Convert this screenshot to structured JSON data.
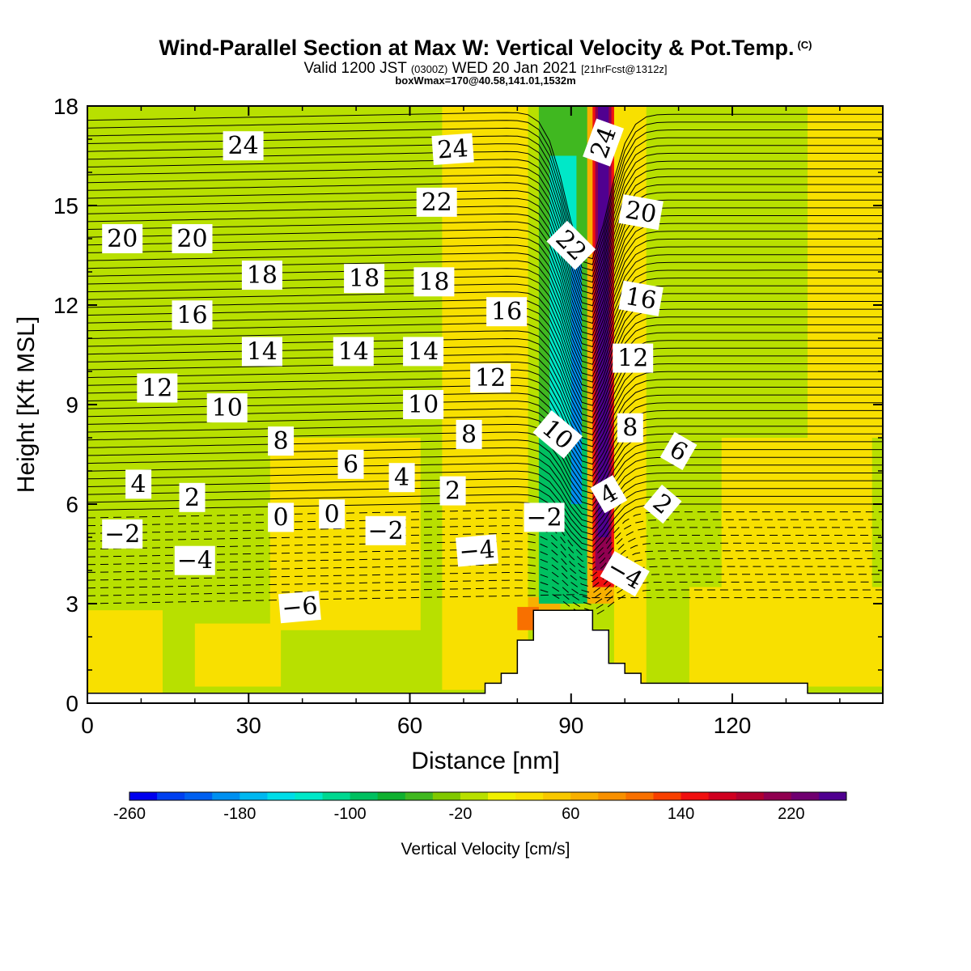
{
  "title": {
    "main": "Wind-Parallel Section at Max W: Vertical Velocity & Pot.Temp.",
    "mark": "(C)",
    "valid_prefix": "Valid 1200 JST",
    "valid_zulu": "(0300Z)",
    "valid_date": "WED 20 Jan 2021",
    "valid_fcst": "[21hrFcst@1312z]",
    "box": "boxWmax=170@40.58,141.01,1532m"
  },
  "chart_data": {
    "type": "heatmap",
    "xlabel": "Distance [nm]",
    "ylabel": "Height [Kft MSL]",
    "xlim": [
      0,
      148
    ],
    "ylim": [
      0,
      18
    ],
    "xticks": [
      0,
      30,
      60,
      90,
      120
    ],
    "yticks": [
      0,
      3,
      6,
      9,
      12,
      15,
      18
    ],
    "colorbar": {
      "title": "Vertical Velocity [cm/s]",
      "ticks": [
        -260,
        -180,
        -100,
        -20,
        60,
        140,
        220
      ],
      "colors": [
        "#0000ee",
        "#0040f0",
        "#0060f0",
        "#0090f0",
        "#00b8f0",
        "#00dde8",
        "#00e8c8",
        "#00d890",
        "#00c060",
        "#10b030",
        "#40b820",
        "#80c800",
        "#b8e000",
        "#f0f000",
        "#f8e000",
        "#f8c800",
        "#f8b000",
        "#f89000",
        "#f87000",
        "#f84000",
        "#f01010",
        "#d00020",
        "#b00030",
        "#900050",
        "#700070",
        "#500090"
      ],
      "min": -260,
      "max": 260
    },
    "velocity_regions": [
      {
        "x": [
          0,
          148
        ],
        "y": [
          0,
          18
        ],
        "w": -20
      },
      {
        "x": [
          0,
          14
        ],
        "y": [
          0.3,
          2.8
        ],
        "w": 20
      },
      {
        "x": [
          20,
          36
        ],
        "y": [
          0.5,
          2.4
        ],
        "w": 20
      },
      {
        "x": [
          34,
          62
        ],
        "y": [
          2.2,
          8.0
        ],
        "w": 20
      },
      {
        "x": [
          66,
          82
        ],
        "y": [
          0.4,
          18
        ],
        "w": 20
      },
      {
        "x": [
          98,
          104
        ],
        "y": [
          0.5,
          18
        ],
        "w": 20
      },
      {
        "x": [
          112,
          148
        ],
        "y": [
          0.5,
          3.5
        ],
        "w": 20
      },
      {
        "x": [
          118,
          146
        ],
        "y": [
          3.5,
          8.0
        ],
        "w": 20
      },
      {
        "x": [
          134,
          148
        ],
        "y": [
          8.0,
          18
        ],
        "w": 20
      },
      {
        "x": [
          82,
          88
        ],
        "y": [
          2.4,
          3.2
        ],
        "w": 60
      },
      {
        "x": [
          80,
          84
        ],
        "y": [
          2.2,
          2.9
        ],
        "w": 100
      },
      {
        "x": [
          84,
          97
        ],
        "y": [
          8.0,
          18
        ],
        "w": -60
      },
      {
        "x": [
          84,
          94
        ],
        "y": [
          3.0,
          8.0
        ],
        "w": -100
      },
      {
        "x": [
          86,
          91
        ],
        "y": [
          8.0,
          16.5
        ],
        "w": -140
      },
      {
        "x": [
          90,
          92
        ],
        "y": [
          6.0,
          13.5
        ],
        "w": -200
      },
      {
        "x": [
          93,
          98
        ],
        "y": [
          3.0,
          18
        ],
        "w": 60
      },
      {
        "x": [
          94,
          98
        ],
        "y": [
          3.5,
          18
        ],
        "w": 140
      },
      {
        "x": [
          94.5,
          97.5
        ],
        "y": [
          4.0,
          18
        ],
        "w": 200
      },
      {
        "x": [
          95,
          97
        ],
        "y": [
          5.0,
          18
        ],
        "w": 250
      }
    ],
    "terrain": {
      "x": [
        0,
        74,
        74,
        77,
        77,
        80,
        80,
        83,
        83,
        86,
        86,
        94,
        94,
        97,
        97,
        100,
        100,
        103,
        103,
        134,
        134,
        148
      ],
      "y": [
        0.3,
        0.3,
        0.6,
        0.6,
        0.9,
        0.9,
        1.9,
        1.9,
        2.8,
        2.8,
        2.8,
        2.8,
        2.2,
        2.2,
        1.2,
        1.2,
        0.9,
        0.9,
        0.6,
        0.6,
        0.3,
        0.3
      ]
    },
    "theta_contours": {
      "levels": [
        -6,
        -4,
        -2,
        0,
        2,
        4,
        6,
        8,
        10,
        12,
        14,
        16,
        18,
        20,
        22,
        24
      ],
      "labels": [
        {
          "text": "24",
          "x": 29,
          "y": 16.8,
          "rot": 0
        },
        {
          "text": "24",
          "x": 68,
          "y": 16.7,
          "rot": -4
        },
        {
          "text": "24",
          "x": 96,
          "y": 16.9,
          "rot": -70
        },
        {
          "text": "22",
          "x": 65,
          "y": 15.1,
          "rot": 0
        },
        {
          "text": "22",
          "x": 90,
          "y": 13.8,
          "rot": 45
        },
        {
          "text": "20",
          "x": 6.5,
          "y": 14.0,
          "rot": 0
        },
        {
          "text": "20",
          "x": 19.5,
          "y": 14.0,
          "rot": 0
        },
        {
          "text": "20",
          "x": 103,
          "y": 14.8,
          "rot": 10
        },
        {
          "text": "18",
          "x": 32.5,
          "y": 12.9,
          "rot": 0
        },
        {
          "text": "18",
          "x": 51.5,
          "y": 12.8,
          "rot": 0
        },
        {
          "text": "18",
          "x": 64.5,
          "y": 12.7,
          "rot": 0
        },
        {
          "text": "16",
          "x": 19.5,
          "y": 11.7,
          "rot": 0
        },
        {
          "text": "16",
          "x": 78,
          "y": 11.8,
          "rot": 0
        },
        {
          "text": "16",
          "x": 103,
          "y": 12.2,
          "rot": 10
        },
        {
          "text": "14",
          "x": 32.5,
          "y": 10.6,
          "rot": 0
        },
        {
          "text": "14",
          "x": 49.5,
          "y": 10.6,
          "rot": 0
        },
        {
          "text": "14",
          "x": 62.5,
          "y": 10.6,
          "rot": 0
        },
        {
          "text": "12",
          "x": 13,
          "y": 9.5,
          "rot": 0
        },
        {
          "text": "12",
          "x": 75,
          "y": 9.8,
          "rot": 0
        },
        {
          "text": "12",
          "x": 101.5,
          "y": 10.4,
          "rot": 0
        },
        {
          "text": "10",
          "x": 26,
          "y": 8.9,
          "rot": 0
        },
        {
          "text": "10",
          "x": 62.5,
          "y": 9.0,
          "rot": 0
        },
        {
          "text": "10",
          "x": 87.5,
          "y": 8.1,
          "rot": 40
        },
        {
          "text": "8",
          "x": 36,
          "y": 7.9,
          "rot": 0
        },
        {
          "text": "8",
          "x": 71,
          "y": 8.1,
          "rot": 0
        },
        {
          "text": "8",
          "x": 101,
          "y": 8.3,
          "rot": 0
        },
        {
          "text": "6",
          "x": 49,
          "y": 7.2,
          "rot": 0
        },
        {
          "text": "6",
          "x": 110,
          "y": 7.6,
          "rot": 30
        },
        {
          "text": "4",
          "x": 9.5,
          "y": 6.6,
          "rot": 0
        },
        {
          "text": "4",
          "x": 58.5,
          "y": 6.8,
          "rot": 0
        },
        {
          "text": "4",
          "x": 97,
          "y": 6.3,
          "rot": -30
        },
        {
          "text": "2",
          "x": 19.5,
          "y": 6.2,
          "rot": 0
        },
        {
          "text": "2",
          "x": 68,
          "y": 6.4,
          "rot": 0
        },
        {
          "text": "2",
          "x": 107,
          "y": 6.0,
          "rot": 40
        },
        {
          "text": "0",
          "x": 36,
          "y": 5.6,
          "rot": 0
        },
        {
          "text": "0",
          "x": 45.5,
          "y": 5.7,
          "rot": 0
        },
        {
          "text": "−2",
          "x": 6.5,
          "y": 5.1,
          "rot": 0
        },
        {
          "text": "−2",
          "x": 55.5,
          "y": 5.2,
          "rot": 0
        },
        {
          "text": "−2",
          "x": 85,
          "y": 5.6,
          "rot": 0
        },
        {
          "text": "−4",
          "x": 20,
          "y": 4.3,
          "rot": 0
        },
        {
          "text": "−4",
          "x": 72.5,
          "y": 4.6,
          "rot": -5
        },
        {
          "text": "−4",
          "x": 100,
          "y": 3.9,
          "rot": 30
        },
        {
          "text": "−6",
          "x": 39.5,
          "y": 2.9,
          "rot": -5
        }
      ]
    }
  }
}
